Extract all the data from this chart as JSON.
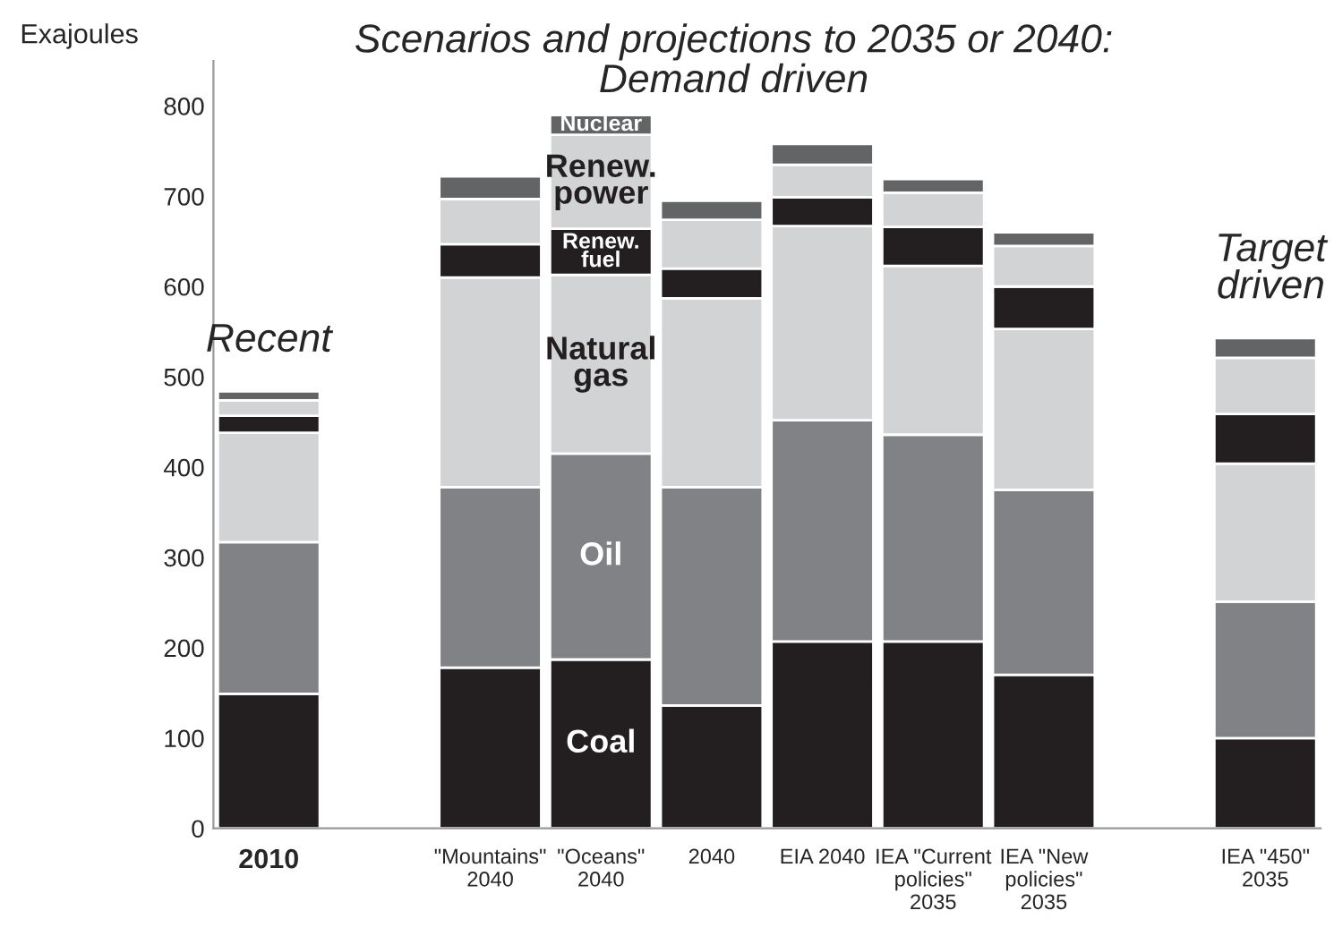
{
  "chart_data": {
    "type": "bar",
    "stacked": true,
    "title": "Scenarios and projections to 2035 or 2040:\nDemand driven",
    "ylabel": "Exajoules",
    "categories": [
      "2010",
      null,
      "\"Mountains\"\n2040",
      "\"Oceans\"\n2040",
      "2040",
      "EIA 2040",
      "IEA \"Current\npolicies\"\n2035",
      "IEA \"New\npolicies\"\n2035",
      null,
      "IEA \"450\"\n2035"
    ],
    "series": [
      {
        "name": "Coal",
        "color": "#231f20",
        "values": [
          149,
          null,
          178,
          187,
          136,
          207,
          207,
          170,
          null,
          100
        ]
      },
      {
        "name": "Oil",
        "color": "#808285",
        "values": [
          168,
          null,
          200,
          228,
          242,
          245,
          229,
          205,
          null,
          151
        ]
      },
      {
        "name": "Natural gas",
        "color": "#d1d3d4",
        "values": [
          121,
          null,
          232,
          198,
          209,
          215,
          187,
          178,
          null,
          153
        ]
      },
      {
        "name": "Renew. fuel",
        "color": "#231f20",
        "values": [
          19,
          null,
          37,
          51,
          33,
          32,
          43,
          47,
          null,
          55
        ]
      },
      {
        "name": "Renew. power",
        "color": "#d1d3d4",
        "values": [
          17,
          null,
          50,
          104,
          54,
          36,
          38,
          45,
          null,
          62
        ]
      },
      {
        "name": "Nuclear",
        "color": "#636466",
        "values": [
          10,
          null,
          25,
          22,
          21,
          23,
          15,
          15,
          null,
          22
        ]
      }
    ],
    "annotations": [
      "Recent",
      "Target\ndriven"
    ],
    "ylim": [
      0,
      850
    ],
    "yticks": [
      0,
      100,
      200,
      300,
      400,
      500,
      600,
      700,
      800
    ],
    "grid": false,
    "legend": false
  }
}
